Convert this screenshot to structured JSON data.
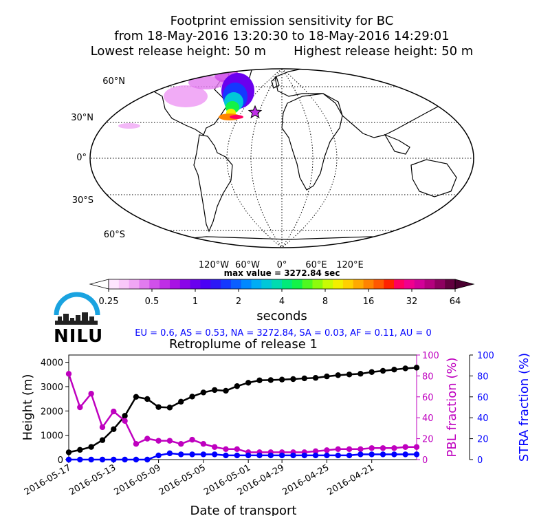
{
  "title": {
    "line1": "Footprint emission sensitivity for BC",
    "line2": "from 18-May-2016 13:20:30 to 18-May-2016 14:29:01",
    "line3_left": "Lowest release height: 50 m",
    "line3_right": "Highest release height: 50 m"
  },
  "map": {
    "lat_labels": [
      "60°N",
      "30°N",
      "0°",
      "30°S",
      "60°S"
    ],
    "lon_labels": [
      "120°W",
      "60°W",
      "0°",
      "60°E",
      "120°E"
    ],
    "max_value_label": "max value = 3272.84 sec"
  },
  "colorbar": {
    "tick_labels": [
      "0.25",
      "0.5",
      "1",
      "2",
      "4",
      "8",
      "16",
      "32",
      "64"
    ],
    "unit_label": "seconds",
    "colors": [
      "#ffe6ff",
      "#f9c8f9",
      "#f0a6f5",
      "#e27bef",
      "#d050ea",
      "#bf2ee6",
      "#a813e3",
      "#8a05e8",
      "#6a00ee",
      "#4b00f5",
      "#2c18f6",
      "#1538ff",
      "#0a5fff",
      "#0088ff",
      "#00acf4",
      "#00c7d8",
      "#00dbb0",
      "#00ea7a",
      "#12f348",
      "#4ef920",
      "#8dfb0d",
      "#c8fb05",
      "#f2ef00",
      "#ffd000",
      "#ffaa00",
      "#ff8300",
      "#ff5800",
      "#ff2200",
      "#ff0060",
      "#f0008e",
      "#d30098",
      "#b4007e",
      "#8d0060",
      "#62003f"
    ],
    "extend_left_color": "#ffffff",
    "extend_right_color": "#4a0030"
  },
  "logo": {
    "text": "NILU",
    "arc_color": "#1aa3e0"
  },
  "fractions": {
    "text": "EU = 0.6,  AS = 0.53,  NA = 3272.84,  SA = 0.03,  AF = 0.11,  AU = 0",
    "color": "#0000ff"
  },
  "chart_data": {
    "type": "line",
    "title": "Retroplume of release 1",
    "xlabel": "Date of transport",
    "ylabel_left": "Height (m)",
    "ylabel_right1": "PBL fraction (%)",
    "ylabel_right2": "STRA fraction (%)",
    "x_tick_labels": [
      "2016-05-17",
      "2016-05-13",
      "2016-05-09",
      "2016-05-05",
      "2016-05-01",
      "2016-04-29",
      "2016-04-25",
      "2016-04-21"
    ],
    "y_left_ticks": [
      "0",
      "1000",
      "2000",
      "3000",
      "4000"
    ],
    "y_right_ticks": [
      "0",
      "20",
      "40",
      "60",
      "80",
      "100"
    ],
    "ylim_left": [
      0,
      4300
    ],
    "ylim_right": [
      0,
      100
    ],
    "series": [
      {
        "axis": "left",
        "color": "#000000",
        "values": [
          300,
          400,
          520,
          800,
          1250,
          1800,
          2580,
          2490,
          2160,
          2140,
          2380,
          2590,
          2760,
          2860,
          2830,
          3020,
          3160,
          3260,
          3270,
          3290,
          3310,
          3340,
          3360,
          3420,
          3470,
          3500,
          3530,
          3600,
          3650,
          3700,
          3750,
          3780
        ]
      },
      {
        "axis": "right1",
        "color": "#bf00bf",
        "values": [
          82,
          50,
          63,
          31,
          46,
          37,
          15,
          20,
          18,
          18,
          15,
          19,
          15,
          12,
          10,
          10,
          7,
          7,
          7,
          7,
          7,
          7,
          8,
          9,
          10,
          10,
          10,
          11,
          11,
          11,
          12,
          12
        ]
      },
      {
        "axis": "right2",
        "color": "#0000ff",
        "values": [
          0,
          0,
          0,
          0,
          0,
          0,
          0,
          0,
          4,
          6,
          5,
          5,
          5,
          5,
          4,
          4,
          4,
          4,
          4,
          4,
          4,
          4,
          4,
          4,
          4,
          4,
          5,
          5,
          5,
          5,
          5,
          5
        ]
      }
    ]
  }
}
